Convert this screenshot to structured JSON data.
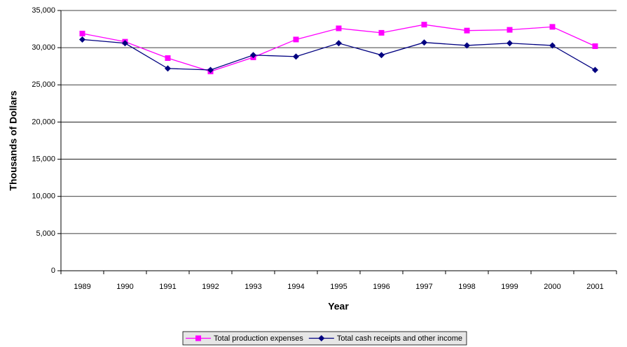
{
  "chart_data": {
    "type": "line",
    "x_label": "Year",
    "y_label": "Thousands of Dollars",
    "categories": [
      "1989",
      "1990",
      "1991",
      "1992",
      "1993",
      "1994",
      "1995",
      "1996",
      "1997",
      "1998",
      "1999",
      "2000",
      "2001"
    ],
    "series": [
      {
        "name": "Total production expenses",
        "color": "#ff00ff",
        "marker": "square",
        "values": [
          31900,
          30800,
          28600,
          26800,
          28700,
          31100,
          32600,
          32000,
          33100,
          32300,
          32400,
          32800,
          30200
        ]
      },
      {
        "name": "Total cash receipts and other income",
        "color": "#000080",
        "marker": "diamond",
        "values": [
          31100,
          30600,
          27200,
          27000,
          29000,
          28800,
          30600,
          29000,
          30700,
          30300,
          30600,
          30300,
          27000
        ]
      }
    ],
    "ylim": [
      0,
      35000
    ],
    "yticks": [
      0,
      {
        "value": 5000,
        "label": "5,000"
      },
      {
        "value": 10000,
        "label": "10,000"
      },
      {
        "value": 15000,
        "label": "15,000"
      },
      {
        "value": 20000,
        "label": "20,000"
      },
      {
        "value": 25000,
        "label": "25,000"
      },
      {
        "value": 30000,
        "label": "30,000"
      },
      {
        "value": 35000,
        "label": "35,000"
      }
    ],
    "grid": true,
    "legend": "bottom"
  }
}
